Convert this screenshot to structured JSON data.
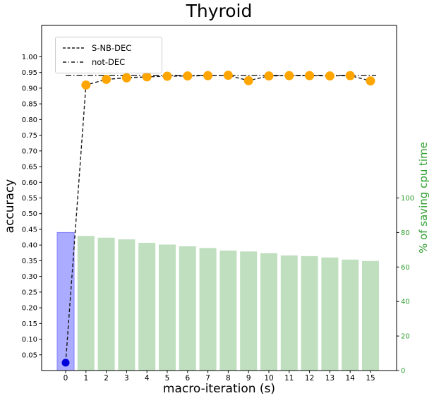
{
  "title": "Thyroid",
  "axes": {
    "left_label": "accuracy",
    "right_label": "% of saving cpu time",
    "bottom_label": "macro-iteration (s)",
    "left_ticks": [
      "0.05",
      "0.10",
      "0.15",
      "0.20",
      "0.25",
      "0.30",
      "0.35",
      "0.40",
      "0.45",
      "0.50",
      "0.55",
      "0.60",
      "0.65",
      "0.70",
      "0.75",
      "0.80",
      "0.85",
      "0.90",
      "0.95",
      "1.00"
    ],
    "right_ticks": [
      0,
      20,
      40,
      60,
      80,
      100
    ],
    "x_ticks": [
      "0",
      "1",
      "2",
      "3",
      "4",
      "5",
      "6",
      "7",
      "8",
      "9",
      "10",
      "11",
      "12",
      "13",
      "14",
      "15"
    ]
  },
  "legend": [
    {
      "label": "S-NB-DEC",
      "style": "dashed"
    },
    {
      "label": "not-DEC",
      "style": "dashdot"
    }
  ],
  "chart_data": {
    "type": "bar",
    "title": "Thyroid",
    "xlabel": "macro-iteration (s)",
    "ylabel_left": "accuracy",
    "ylabel_right": "% of saving cpu time",
    "x": [
      0,
      1,
      2,
      3,
      4,
      5,
      6,
      7,
      8,
      9,
      10,
      11,
      12,
      13,
      14,
      15
    ],
    "xlim": [
      -1.2,
      16.3
    ],
    "ylim_left": [
      0,
      1.1
    ],
    "ylim_right": [
      0,
      200
    ],
    "grid": false,
    "legend_position": "upper left",
    "series": [
      {
        "name": "S-NB-DEC",
        "type": "line",
        "axis": "left",
        "linestyle": "dashed",
        "values": [
          0.025,
          0.91,
          0.928,
          0.933,
          0.936,
          0.938,
          0.939,
          0.94,
          0.941,
          0.924,
          0.939,
          0.94,
          0.94,
          0.939,
          0.94,
          0.923
        ]
      },
      {
        "name": "not-DEC",
        "type": "line",
        "axis": "left",
        "linestyle": "dashdot",
        "constant_value": 0.941
      },
      {
        "name": "% of saving cpu time",
        "type": "bar",
        "axis": "right",
        "values": [
          80,
          78,
          77,
          76,
          74,
          73,
          72,
          71,
          69.5,
          69,
          68,
          66.7,
          66.3,
          65.5,
          64.3,
          63.5
        ]
      }
    ]
  },
  "colors": {
    "marker_orange": "#ffa500",
    "dot_blue": "#0000dd",
    "line_black": "#1a1a1a",
    "bar_blue_fill": "#ababff",
    "bar_blue_edge": "#8080ff",
    "bar_green_fill": "#bfdfbf",
    "right_axis_green": "#2f9e2f",
    "axis_black": "#000000"
  }
}
